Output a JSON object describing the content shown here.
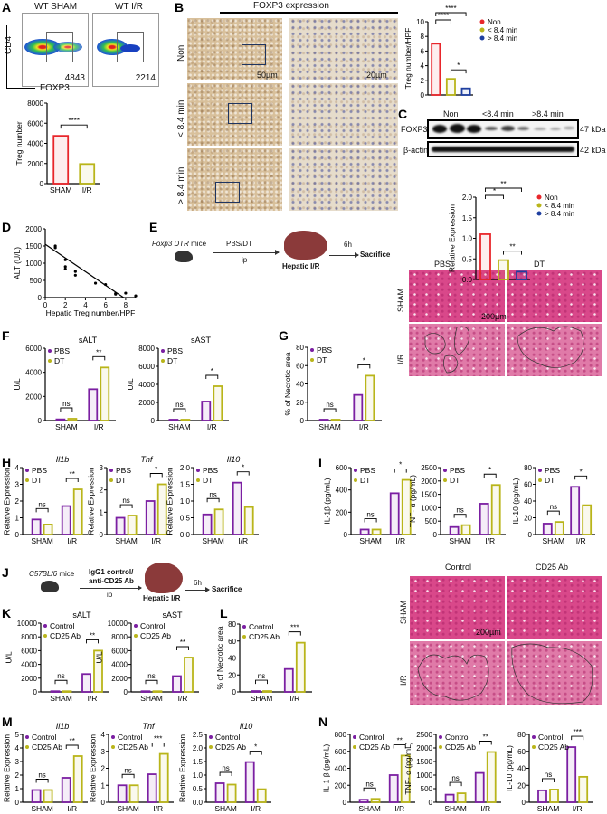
{
  "letters": [
    "A",
    "B",
    "C",
    "D",
    "E",
    "F",
    "G",
    "H",
    "I",
    "J",
    "K",
    "L",
    "M",
    "N"
  ],
  "panelA": {
    "plot1_title": "WT SHAM",
    "plot2_title": "WT I/R",
    "plot1_count": "4843",
    "plot2_count": "2214",
    "y_axis": "CD4",
    "x_axis": "FOXP3"
  },
  "panelB": {
    "title": "FOXP3 expression",
    "rows": [
      "Non",
      "< 8.4 min",
      "> 8.4 min"
    ],
    "scale_low": "50µm",
    "scale_high": "20µm"
  },
  "panelC": {
    "groups": [
      "Non",
      "<8.4 min",
      ">8.4 min"
    ],
    "rows": [
      "FOXP3",
      "β-actin"
    ],
    "sizes": [
      "47 kDa",
      "42 kDa"
    ]
  },
  "panelE": {
    "mice": "Foxp3 DTR",
    "mice_suffix": " mice",
    "treatment": "PBS/DT",
    "route": "ip",
    "surgery": "Hepatic I/R",
    "time": "6h",
    "end": "Sacrifice"
  },
  "panelG_images": {
    "cols": [
      "PBS",
      "DT"
    ],
    "rows": [
      "SHAM",
      "I/R"
    ],
    "scale": "200µm"
  },
  "panelJ": {
    "mice": "C57BL/6",
    "mice_suffix": " mice",
    "treatment_line1": "IgG1 control/",
    "treatment_line2": "anti-CD25 Ab",
    "route": "ip",
    "surgery": "Hepatic I/R",
    "time": "6h",
    "end": "Sacrifice"
  },
  "panelL_images": {
    "cols": [
      "Control",
      "CD25 Ab"
    ],
    "rows": [
      "SHAM",
      "I/R"
    ],
    "scale": "200µm"
  },
  "colors": {
    "non": "#e8262b",
    "lt84": "#b9b51a",
    "gt84": "#1f3fa0",
    "pbs": "#7b1fa2",
    "dt": "#b9b51a"
  },
  "chart_data": [
    {
      "id": "A",
      "type": "bar",
      "title": "",
      "ylabel": "Treg number",
      "ylim": [
        0,
        8000
      ],
      "yticks": [
        "0",
        "2000",
        "4000",
        "6000",
        "8000"
      ],
      "categories": [
        "SHAM",
        "I/R"
      ],
      "values": [
        4750,
        1950
      ],
      "colors": [
        "#e8262b",
        "#b9b51a"
      ],
      "significance": [
        {
          "from": 0,
          "to": 1,
          "label": "****"
        }
      ]
    },
    {
      "id": "B",
      "type": "bar",
      "title": "",
      "ylabel": "Treg number/HPF",
      "ylim": [
        0,
        10
      ],
      "yticks": [
        "0",
        "2",
        "4",
        "6",
        "8",
        "10"
      ],
      "categories": [
        "Non",
        "< 8.4 min",
        "> 8.4 min"
      ],
      "values": [
        7.0,
        2.2,
        0.9
      ],
      "colors": [
        "#e8262b",
        "#b9b51a",
        "#1f3fa0"
      ],
      "legend": "right",
      "show_category_labels": false,
      "significance": [
        {
          "from": 0,
          "to": 2,
          "label": "****"
        },
        {
          "from": 0,
          "to": 1,
          "label": "****"
        },
        {
          "from": 1,
          "to": 2,
          "label": "*"
        }
      ]
    },
    {
      "id": "C",
      "type": "bar",
      "title": "",
      "ylabel": "Relative Expression",
      "ylim": [
        0,
        2.0
      ],
      "yticks": [
        "0.0",
        "0.5",
        "1.0",
        "1.5",
        "2.0"
      ],
      "categories": [
        "Non",
        "< 8.4 min",
        "> 8.4 min"
      ],
      "values": [
        1.1,
        0.47,
        0.19
      ],
      "colors": [
        "#e8262b",
        "#b9b51a",
        "#1f3fa0"
      ],
      "legend": "right",
      "show_category_labels": false,
      "significance": [
        {
          "from": 0,
          "to": 2,
          "label": "**"
        },
        {
          "from": 0,
          "to": 1,
          "label": "*"
        },
        {
          "from": 1,
          "to": 2,
          "label": "**"
        }
      ]
    },
    {
      "id": "D",
      "type": "scatter",
      "xlabel": "Hepatic Treg number/HPF",
      "ylabel": "ALT (U/L)",
      "xlim": [
        0,
        9
      ],
      "ylim": [
        0,
        2000
      ],
      "xticks": [
        "0",
        "2",
        "4",
        "6",
        "8"
      ],
      "yticks": [
        "0",
        "500",
        "1000",
        "1500",
        "2000"
      ],
      "x": [
        1,
        1,
        2,
        2,
        2,
        3,
        3,
        5,
        6,
        7,
        7,
        8,
        9
      ],
      "y": [
        1500,
        1450,
        1100,
        900,
        830,
        760,
        650,
        420,
        380,
        120,
        100,
        130,
        50
      ],
      "fit": {
        "x": [
          0,
          7.8
        ],
        "y": [
          1550,
          0
        ]
      }
    },
    {
      "id": "F1",
      "type": "bar",
      "title": "sALT",
      "ylabel": "U/L",
      "ylim": [
        0,
        6000
      ],
      "yticks": [
        "0",
        "2000",
        "4000",
        "6000"
      ],
      "categories": [
        "SHAM",
        "I/R"
      ],
      "series": [
        {
          "name": "PBS",
          "values": [
            100,
            2600
          ],
          "color": "#7b1fa2"
        },
        {
          "name": "DT",
          "values": [
            150,
            4400
          ],
          "color": "#b9b51a"
        }
      ],
      "significance": [
        "ns",
        "**"
      ]
    },
    {
      "id": "F2",
      "type": "bar",
      "title": "sAST",
      "ylabel": "U/L",
      "ylim": [
        0,
        8000
      ],
      "yticks": [
        "0",
        "2000",
        "4000",
        "6000",
        "8000"
      ],
      "categories": [
        "SHAM",
        "I/R"
      ],
      "series": [
        {
          "name": "PBS",
          "values": [
            100,
            2100
          ],
          "color": "#7b1fa2"
        },
        {
          "name": "DT",
          "values": [
            100,
            3800
          ],
          "color": "#b9b51a"
        }
      ],
      "significance": [
        "ns",
        "*"
      ]
    },
    {
      "id": "G",
      "type": "bar",
      "title": "",
      "ylabel": "% of Necrotic area",
      "ylim": [
        0,
        80
      ],
      "yticks": [
        "0",
        "20",
        "40",
        "60",
        "80"
      ],
      "categories": [
        "SHAM",
        "I/R"
      ],
      "series": [
        {
          "name": "PBS",
          "values": [
            1,
            28
          ],
          "color": "#7b1fa2"
        },
        {
          "name": "DT",
          "values": [
            1,
            49
          ],
          "color": "#b9b51a"
        }
      ],
      "significance": [
        "ns",
        "*"
      ]
    },
    {
      "id": "H1",
      "type": "bar",
      "title": "Il1b",
      "italic": true,
      "ylabel": "Relative Expression",
      "ylim": [
        0,
        4
      ],
      "yticks": [
        "0",
        "1",
        "2",
        "3",
        "4"
      ],
      "categories": [
        "SHAM",
        "I/R"
      ],
      "series": [
        {
          "name": "PBS",
          "values": [
            0.9,
            1.7
          ],
          "color": "#7b1fa2"
        },
        {
          "name": "DT",
          "values": [
            0.6,
            2.7
          ],
          "color": "#b9b51a"
        }
      ],
      "significance": [
        "ns",
        "**"
      ]
    },
    {
      "id": "H2",
      "type": "bar",
      "title": "Tnf",
      "italic": true,
      "ylabel": "Relative Expression",
      "ylim": [
        0,
        3
      ],
      "yticks": [
        "0",
        "1",
        "2",
        "3"
      ],
      "categories": [
        "SHAM",
        "I/R"
      ],
      "series": [
        {
          "name": "PBS",
          "values": [
            0.75,
            1.5
          ],
          "color": "#7b1fa2"
        },
        {
          "name": "DT",
          "values": [
            0.85,
            2.25
          ],
          "color": "#b9b51a"
        }
      ],
      "significance": [
        "ns",
        "*"
      ]
    },
    {
      "id": "H3",
      "type": "bar",
      "title": "Il10",
      "italic": true,
      "ylabel": "Relative Expression",
      "ylim": [
        0,
        2.0
      ],
      "yticks": [
        "0.0",
        "0.5",
        "1.0",
        "1.5",
        "2.0"
      ],
      "categories": [
        "SHAM",
        "I/R"
      ],
      "series": [
        {
          "name": "PBS",
          "values": [
            0.6,
            1.55
          ],
          "color": "#7b1fa2"
        },
        {
          "name": "DT",
          "values": [
            0.75,
            0.82
          ],
          "color": "#b9b51a"
        }
      ],
      "significance": [
        "ns",
        "*"
      ]
    },
    {
      "id": "I1",
      "type": "bar",
      "title": "",
      "ylabel": "IL-1β (pg/mL)",
      "ylim": [
        0,
        600
      ],
      "yticks": [
        "0",
        "200",
        "400",
        "600"
      ],
      "categories": [
        "SHAM",
        "I/R"
      ],
      "series": [
        {
          "name": "PBS",
          "values": [
            45,
            370
          ],
          "color": "#7b1fa2"
        },
        {
          "name": "DT",
          "values": [
            45,
            490
          ],
          "color": "#b9b51a"
        }
      ],
      "significance": [
        "ns",
        "*"
      ]
    },
    {
      "id": "I2",
      "type": "bar",
      "title": "",
      "ylabel": "TNF- α (pg/mL)",
      "ylim": [
        0,
        2500
      ],
      "yticks": [
        "0",
        "500",
        "1000",
        "1500",
        "2000",
        "2500"
      ],
      "categories": [
        "SHAM",
        "I/R"
      ],
      "series": [
        {
          "name": "PBS",
          "values": [
            280,
            1150
          ],
          "color": "#7b1fa2"
        },
        {
          "name": "DT",
          "values": [
            350,
            1850
          ],
          "color": "#b9b51a"
        }
      ],
      "significance": [
        "ns",
        "*"
      ]
    },
    {
      "id": "I3",
      "type": "bar",
      "title": "",
      "ylabel": "IL-10 (pg/mL)",
      "ylim": [
        0,
        80
      ],
      "yticks": [
        "0",
        "20",
        "40",
        "60",
        "80"
      ],
      "categories": [
        "SHAM",
        "I/R"
      ],
      "series": [
        {
          "name": "PBS",
          "values": [
            13,
            57
          ],
          "color": "#7b1fa2"
        },
        {
          "name": "DT",
          "values": [
            15,
            35
          ],
          "color": "#b9b51a"
        }
      ],
      "significance": [
        "ns",
        "*"
      ]
    },
    {
      "id": "K1",
      "type": "bar",
      "title": "sALT",
      "ylabel": "U/L",
      "ylim": [
        0,
        10000
      ],
      "yticks": [
        "0",
        "2000",
        "4000",
        "6000",
        "8000",
        "10000"
      ],
      "categories": [
        "SHAM",
        "I/R"
      ],
      "series": [
        {
          "name": "Control",
          "values": [
            100,
            2600
          ],
          "color": "#7b1fa2"
        },
        {
          "name": "CD25 Ab",
          "values": [
            100,
            6000
          ],
          "color": "#b9b51a"
        }
      ],
      "significance": [
        "ns",
        "**"
      ]
    },
    {
      "id": "K2",
      "type": "bar",
      "title": "sAST",
      "ylabel": "U/L",
      "ylim": [
        0,
        10000
      ],
      "yticks": [
        "0",
        "2000",
        "4000",
        "6000",
        "8000",
        "10000"
      ],
      "categories": [
        "SHAM",
        "I/R"
      ],
      "series": [
        {
          "name": "Control",
          "values": [
            100,
            2300
          ],
          "color": "#7b1fa2"
        },
        {
          "name": "CD25 Ab",
          "values": [
            100,
            5000
          ],
          "color": "#b9b51a"
        }
      ],
      "significance": [
        "ns",
        "**"
      ]
    },
    {
      "id": "L",
      "type": "bar",
      "title": "",
      "ylabel": "% of Necrotic area",
      "ylim": [
        0,
        80
      ],
      "yticks": [
        "0",
        "20",
        "40",
        "60",
        "80"
      ],
      "categories": [
        "SHAM",
        "I/R"
      ],
      "series": [
        {
          "name": "Control",
          "values": [
            1,
            27
          ],
          "color": "#7b1fa2"
        },
        {
          "name": "CD25 Ab",
          "values": [
            1,
            58
          ],
          "color": "#b9b51a"
        }
      ],
      "significance": [
        "ns",
        "***"
      ]
    },
    {
      "id": "M1",
      "type": "bar",
      "title": "Il1b",
      "italic": true,
      "ylabel": "Relative Expression",
      "ylim": [
        0,
        5
      ],
      "yticks": [
        "0",
        "1",
        "2",
        "3",
        "4",
        "5"
      ],
      "categories": [
        "SHAM",
        "I/R"
      ],
      "series": [
        {
          "name": "Control",
          "values": [
            0.9,
            1.8
          ],
          "color": "#7b1fa2"
        },
        {
          "name": "CD25 Ab",
          "values": [
            0.9,
            3.4
          ],
          "color": "#b9b51a"
        }
      ],
      "significance": [
        "ns",
        "**"
      ]
    },
    {
      "id": "M2",
      "type": "bar",
      "title": "Tnf",
      "italic": true,
      "ylabel": "Relative Expression",
      "ylim": [
        0,
        4
      ],
      "yticks": [
        "0",
        "1",
        "2",
        "3",
        "4"
      ],
      "categories": [
        "SHAM",
        "I/R"
      ],
      "series": [
        {
          "name": "Control",
          "values": [
            1.0,
            1.65
          ],
          "color": "#7b1fa2"
        },
        {
          "name": "CD25 Ab",
          "values": [
            1.0,
            2.85
          ],
          "color": "#b9b51a"
        }
      ],
      "significance": [
        "ns",
        "***"
      ]
    },
    {
      "id": "M3",
      "type": "bar",
      "title": "Il10",
      "italic": true,
      "ylabel": "Relative Expression",
      "ylim": [
        0,
        2.5
      ],
      "yticks": [
        "0.0",
        "0.5",
        "1.0",
        "1.5",
        "2.0",
        "2.5"
      ],
      "categories": [
        "SHAM",
        "I/R"
      ],
      "series": [
        {
          "name": "Control",
          "values": [
            0.7,
            1.48
          ],
          "color": "#7b1fa2"
        },
        {
          "name": "CD25 Ab",
          "values": [
            0.65,
            0.48
          ],
          "color": "#b9b51a"
        }
      ],
      "significance": [
        "ns",
        "*"
      ]
    },
    {
      "id": "N1",
      "type": "bar",
      "title": "",
      "ylabel": "IL-1 β (pg/mL)",
      "ylim": [
        0,
        800
      ],
      "yticks": [
        "0",
        "200",
        "400",
        "600",
        "800"
      ],
      "categories": [
        "SHAM",
        "I/R"
      ],
      "series": [
        {
          "name": "Control",
          "values": [
            30,
            320
          ],
          "color": "#7b1fa2"
        },
        {
          "name": "CD25 Ab",
          "values": [
            40,
            550
          ],
          "color": "#b9b51a"
        }
      ],
      "significance": [
        "ns",
        "**"
      ]
    },
    {
      "id": "N2",
      "type": "bar",
      "title": "",
      "ylabel": "TNF- α (pg/mL)",
      "ylim": [
        0,
        2500
      ],
      "yticks": [
        "0",
        "500",
        "1000",
        "1500",
        "2000",
        "2500"
      ],
      "categories": [
        "SHAM",
        "I/R"
      ],
      "series": [
        {
          "name": "Control",
          "values": [
            280,
            1080
          ],
          "color": "#7b1fa2"
        },
        {
          "name": "CD25 Ab",
          "values": [
            330,
            1850
          ],
          "color": "#b9b51a"
        }
      ],
      "significance": [
        "ns",
        "**"
      ]
    },
    {
      "id": "N3",
      "type": "bar",
      "title": "",
      "ylabel": "IL-10 (pg/mL)",
      "ylim": [
        0,
        80
      ],
      "yticks": [
        "0",
        "20",
        "40",
        "60",
        "80"
      ],
      "categories": [
        "SHAM",
        "I/R"
      ],
      "series": [
        {
          "name": "Control",
          "values": [
            14,
            65
          ],
          "color": "#7b1fa2"
        },
        {
          "name": "CD25 Ab",
          "values": [
            15,
            30
          ],
          "color": "#b9b51a"
        }
      ],
      "significance": [
        "ns",
        "***"
      ]
    }
  ]
}
